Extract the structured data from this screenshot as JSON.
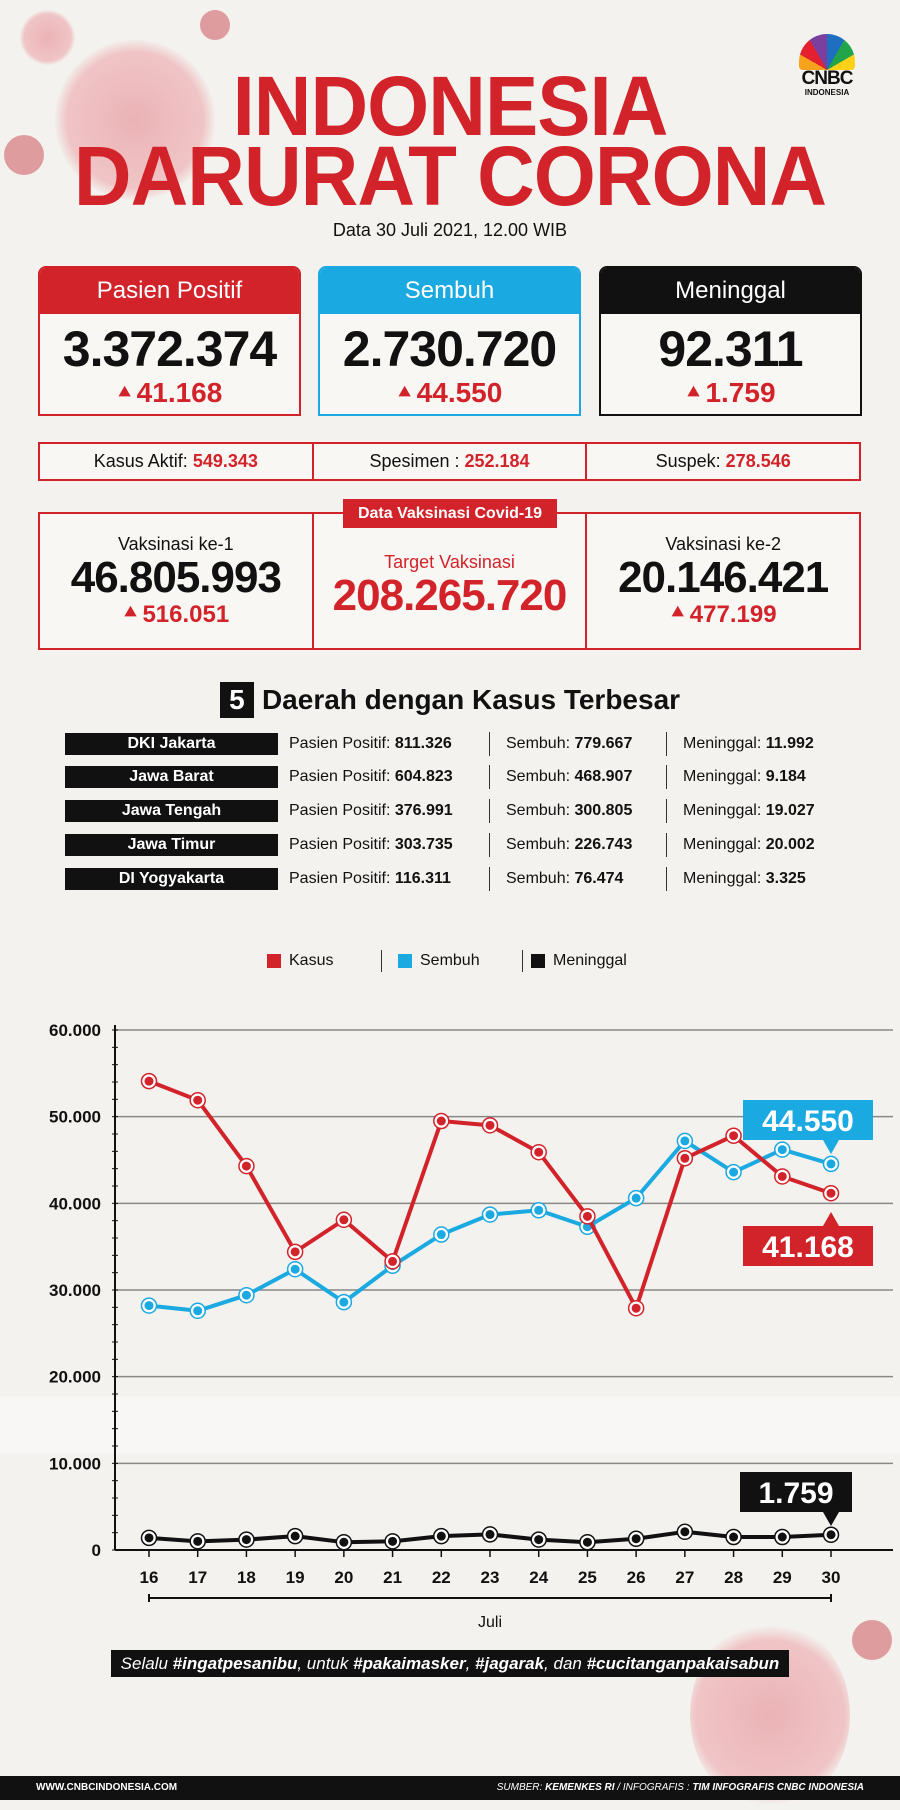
{
  "header": {
    "title_line1": "INDONESIA",
    "title_line2": "DARURAT CORONA",
    "date": "Data 30 Juli 2021, 12.00 WIB",
    "logo_text": "CNBC",
    "logo_sub": "INDONESIA"
  },
  "cards": [
    {
      "label": "Pasien Positif",
      "value": "3.372.374",
      "increase": "41.168",
      "color": "#d2232a"
    },
    {
      "label": "Sembuh",
      "value": "2.730.720",
      "increase": "44.550",
      "color": "#1ba9e1"
    },
    {
      "label": "Meninggal",
      "value": "92.311",
      "increase": "1.759",
      "color": "#111111"
    }
  ],
  "summary": [
    {
      "label": "Kasus Aktif:",
      "value": "549.343"
    },
    {
      "label": "Spesimen :",
      "value": "252.184"
    },
    {
      "label": "Suspek:",
      "value": "278.546"
    }
  ],
  "vaccination": {
    "tag": "Data Vaksinasi Covid-19",
    "first": {
      "label": "Vaksinasi ke-1",
      "value": "46.805.993",
      "increase": "516.051"
    },
    "target": {
      "label": "Target Vaksinasi",
      "value": "208.265.720"
    },
    "second": {
      "label": "Vaksinasi ke-2",
      "value": "20.146.421",
      "increase": "477.199"
    }
  },
  "regions": {
    "number": "5",
    "title": "Daerah dengan Kasus Terbesar",
    "positif_label": "Pasien Positif:",
    "sembuh_label": "Sembuh:",
    "meninggal_label": "Meninggal:",
    "rows": [
      {
        "name": "DKI Jakarta",
        "positif": "811.326",
        "sembuh": "779.667",
        "meninggal": "11.992"
      },
      {
        "name": "Jawa Barat",
        "positif": "604.823",
        "sembuh": "468.907",
        "meninggal": "9.184"
      },
      {
        "name": "Jawa Tengah",
        "positif": "376.991",
        "sembuh": "300.805",
        "meninggal": "19.027"
      },
      {
        "name": "Jawa Timur",
        "positif": "303.735",
        "sembuh": "226.743",
        "meninggal": "20.002"
      },
      {
        "name": "DI Yogyakarta",
        "positif": "116.311",
        "sembuh": "76.474",
        "meninggal": "3.325"
      }
    ]
  },
  "chart_data": {
    "type": "line",
    "title": "",
    "xlabel": "Juli",
    "ylabel": "",
    "x": [
      "16",
      "17",
      "18",
      "19",
      "20",
      "21",
      "22",
      "23",
      "24",
      "25",
      "26",
      "27",
      "28",
      "29",
      "30"
    ],
    "ylim": [
      0,
      60000
    ],
    "yticks": [
      "0",
      "10.000",
      "20.000",
      "30.000",
      "40.000",
      "50.000",
      "60.000"
    ],
    "grid": true,
    "legend_position": "top-center",
    "series": [
      {
        "name": "Kasus",
        "color": "#d2232a",
        "values": [
          54100,
          51900,
          44300,
          34400,
          38100,
          33300,
          49500,
          49000,
          45900,
          38500,
          27900,
          45200,
          47800,
          43100,
          41168
        ],
        "end_label": "41.168"
      },
      {
        "name": "Sembuh",
        "color": "#1ba9e1",
        "values": [
          28200,
          27600,
          29400,
          32400,
          28600,
          32800,
          36400,
          38700,
          39200,
          37300,
          40600,
          47200,
          43600,
          46200,
          44550
        ],
        "end_label": "44.550"
      },
      {
        "name": "Meninggal",
        "color": "#111111",
        "values": [
          1400,
          1000,
          1200,
          1600,
          900,
          1000,
          1600,
          1800,
          1200,
          900,
          1300,
          2100,
          1500,
          1500,
          1759
        ],
        "end_label": "1.759"
      }
    ]
  },
  "slogan": {
    "p1": "Selalu ",
    "h1": "#ingatpesanibu",
    "p2": ", untuk ",
    "h2": "#pakaimasker",
    "p3": ", ",
    "h3": "#jagarak",
    "p4": ", dan ",
    "h4": "#cucitanganpakaisabun"
  },
  "footer": {
    "website": "WWW.CNBCINDONESIA.COM",
    "source_label": "SUMBER: ",
    "source": "KEMENKES RI",
    "info_label": " / INFOGRAFIS : ",
    "info": "TIM INFOGRAFIS CNBC INDONESIA"
  }
}
